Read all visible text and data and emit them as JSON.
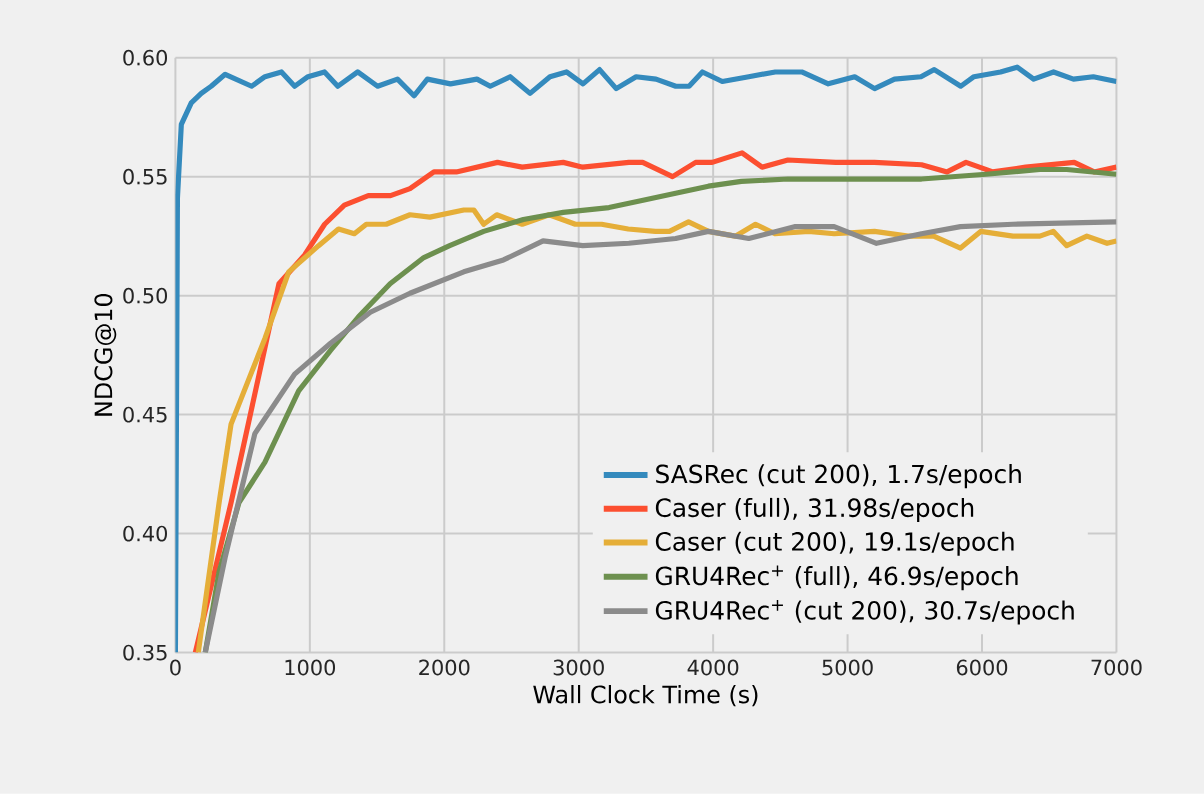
{
  "chart_data": {
    "type": "line",
    "xlabel": "Wall Clock Time (s)",
    "ylabel": "NDCG@10",
    "xlim": [
      0,
      7000
    ],
    "ylim": [
      0.35,
      0.6
    ],
    "xticks": [
      0,
      1000,
      2000,
      3000,
      4000,
      5000,
      6000,
      7000
    ],
    "yticks": [
      {
        "value": 0.35,
        "label": "0.35"
      },
      {
        "value": 0.4,
        "label": "0.40"
      },
      {
        "value": 0.45,
        "label": "0.45"
      },
      {
        "value": 0.5,
        "label": "0.50"
      },
      {
        "value": 0.55,
        "label": "0.55"
      },
      {
        "value": 0.6,
        "label": "0.60"
      }
    ],
    "grid": true,
    "legend": "bottom right",
    "series": [
      {
        "name": "SASRec (cut 200), 1.7s/epoch",
        "color": "#348abd",
        "x": [
          0,
          15,
          44,
          118,
          192,
          266,
          370,
          567,
          666,
          789,
          887,
          986,
          1109,
          1208,
          1356,
          1504,
          1652,
          1775,
          1874,
          2046,
          2243,
          2342,
          2490,
          2638,
          2786,
          2909,
          3032,
          3155,
          3279,
          3427,
          3575,
          3722,
          3821,
          3920,
          4068,
          4265,
          4462,
          4659,
          4856,
          5053,
          5201,
          5349,
          5546,
          5645,
          5842,
          5940,
          6138,
          6261,
          6384,
          6532,
          6680,
          6828,
          7000
        ],
        "values": [
          0.35,
          0.541,
          0.572,
          0.581,
          0.585,
          0.588,
          0.593,
          0.588,
          0.592,
          0.594,
          0.588,
          0.592,
          0.594,
          0.588,
          0.594,
          0.588,
          0.591,
          0.584,
          0.591,
          0.589,
          0.591,
          0.588,
          0.592,
          0.585,
          0.592,
          0.594,
          0.589,
          0.595,
          0.587,
          0.592,
          0.591,
          0.588,
          0.588,
          0.594,
          0.59,
          0.592,
          0.594,
          0.594,
          0.589,
          0.592,
          0.587,
          0.591,
          0.592,
          0.595,
          0.588,
          0.592,
          0.594,
          0.596,
          0.591,
          0.594,
          0.591,
          0.592,
          0.59
        ]
      },
      {
        "name": "Caser (full), 31.98s/epoch",
        "color": "#fc4f30",
        "x": [
          148,
          414,
          770,
          960,
          1110,
          1257,
          1435,
          1600,
          1745,
          1923,
          2090,
          2396,
          2580,
          2885,
          3030,
          3373,
          3476,
          3698,
          3870,
          3993,
          4215,
          4364,
          4556,
          4911,
          5200,
          5550,
          5740,
          5881,
          6080,
          6325,
          6686,
          6834,
          7000
        ],
        "values": [
          0.35,
          0.413,
          0.505,
          0.517,
          0.53,
          0.538,
          0.542,
          0.542,
          0.545,
          0.552,
          0.552,
          0.556,
          0.554,
          0.556,
          0.554,
          0.556,
          0.556,
          0.55,
          0.556,
          0.556,
          0.56,
          0.554,
          0.557,
          0.556,
          0.556,
          0.555,
          0.552,
          0.556,
          0.552,
          0.554,
          0.556,
          0.552,
          0.554
        ]
      },
      {
        "name": "Caser (cut 200), 19.1s/epoch",
        "color": "#e5ae38",
        "x": [
          170,
          325,
          414,
          666,
          843,
          1065,
          1213,
          1331,
          1420,
          1568,
          1745,
          1893,
          2145,
          2220,
          2293,
          2390,
          2580,
          2780,
          2975,
          3170,
          3368,
          3570,
          3675,
          3817,
          3965,
          4165,
          4315,
          4460,
          4710,
          4900,
          5200,
          5450,
          5640,
          5840,
          5990,
          6230,
          6430,
          6530,
          6630,
          6780,
          6930,
          7000
        ],
        "values": [
          0.35,
          0.413,
          0.446,
          0.482,
          0.51,
          0.521,
          0.528,
          0.526,
          0.53,
          0.53,
          0.534,
          0.533,
          0.536,
          0.536,
          0.53,
          0.534,
          0.53,
          0.534,
          0.53,
          0.53,
          0.528,
          0.527,
          0.527,
          0.531,
          0.527,
          0.525,
          0.53,
          0.526,
          0.527,
          0.526,
          0.527,
          0.525,
          0.525,
          0.52,
          0.527,
          0.525,
          0.525,
          0.527,
          0.521,
          0.525,
          0.522,
          0.523
        ]
      },
      {
        "name": "GRU4Rec$^{+}$ (full), 46.9s/epoch",
        "color": "#6d904f",
        "x": [
          222,
          325,
          473,
          666,
          917,
          1154,
          1360,
          1597,
          1848,
          2040,
          2293,
          2588,
          2885,
          3225,
          3470,
          3721,
          3965,
          4210,
          4556,
          4955,
          5550,
          6030,
          6430,
          6630,
          7000
        ],
        "values": [
          0.35,
          0.384,
          0.413,
          0.43,
          0.46,
          0.477,
          0.491,
          0.505,
          0.516,
          0.521,
          0.527,
          0.532,
          0.535,
          0.537,
          0.54,
          0.543,
          0.546,
          0.548,
          0.549,
          0.549,
          0.549,
          0.551,
          0.553,
          0.553,
          0.551
        ]
      },
      {
        "name": "GRU4Rec$^{+}$ (cut 200), 30.7s/epoch",
        "color": "#8b8b8b",
        "x": [
          222,
          370,
          591,
          887,
          1154,
          1450,
          1745,
          2145,
          2440,
          2735,
          3030,
          3373,
          3721,
          3965,
          4265,
          4605,
          4900,
          5215,
          5550,
          5840,
          6230,
          7000
        ],
        "values": [
          0.35,
          0.39,
          0.442,
          0.467,
          0.48,
          0.493,
          0.501,
          0.51,
          0.515,
          0.523,
          0.521,
          0.522,
          0.524,
          0.527,
          0.524,
          0.529,
          0.529,
          0.522,
          0.526,
          0.529,
          0.53,
          0.531
        ]
      }
    ]
  }
}
